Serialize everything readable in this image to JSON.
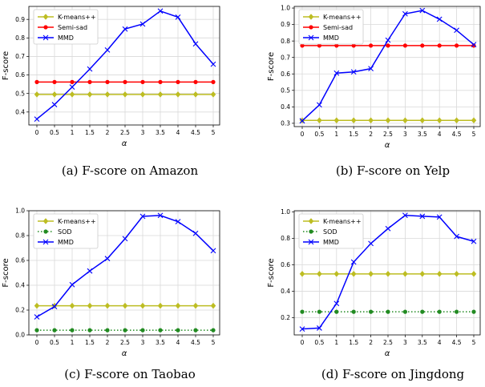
{
  "chart_data": [
    {
      "type": "line",
      "caption": "(a)  F-score on Amazon",
      "xlabel": "α",
      "ylabel": "F-score",
      "x": [
        "0",
        "0.5",
        "1",
        "1.5",
        "2",
        "2.5",
        "3",
        "3.5",
        "4",
        "4.5",
        "5"
      ],
      "ylim": [
        0.33,
        0.97
      ],
      "yticks": [
        0.4,
        0.5,
        0.6,
        0.7,
        0.8,
        0.9
      ],
      "ytick_labels": [
        "0.4",
        "0.5",
        "0.6",
        "0.7",
        "0.8",
        "0.9"
      ],
      "legend_placement": "top-left",
      "series": [
        {
          "name": "K-means++",
          "color": "#bdbd22",
          "style": "solid",
          "marker": "diamond",
          "values": [
            0.495,
            0.495,
            0.495,
            0.495,
            0.495,
            0.495,
            0.495,
            0.495,
            0.495,
            0.495,
            0.495
          ]
        },
        {
          "name": "Semi-sad",
          "color": "#ff0000",
          "style": "solid",
          "marker": "circle",
          "values": [
            0.562,
            0.562,
            0.562,
            0.562,
            0.562,
            0.562,
            0.562,
            0.562,
            0.562,
            0.562,
            0.562
          ]
        },
        {
          "name": "MMD",
          "color": "#0000ff",
          "style": "solid",
          "marker": "x",
          "values": [
            0.362,
            0.44,
            0.535,
            0.632,
            0.735,
            0.848,
            0.875,
            0.945,
            0.912,
            0.768,
            0.658
          ]
        }
      ]
    },
    {
      "type": "line",
      "caption": "(b)  F-score on Yelp",
      "xlabel": "α",
      "ylabel": "F-score",
      "x": [
        "0",
        "0.5",
        "1",
        "1.5",
        "2",
        "2.5",
        "3",
        "3.5",
        "4",
        "4.5",
        "5"
      ],
      "ylim": [
        0.28,
        1.01
      ],
      "yticks": [
        0.3,
        0.4,
        0.5,
        0.6,
        0.7,
        0.8,
        0.9,
        1.0
      ],
      "ytick_labels": [
        "0.3",
        "0.4",
        "0.5",
        "0.6",
        "0.7",
        "0.8",
        "0.9",
        "1.0"
      ],
      "legend_placement": "top-left",
      "series": [
        {
          "name": "K-means++",
          "color": "#bdbd22",
          "style": "solid",
          "marker": "diamond",
          "values": [
            0.318,
            0.318,
            0.318,
            0.318,
            0.318,
            0.318,
            0.318,
            0.318,
            0.318,
            0.318,
            0.318
          ]
        },
        {
          "name": "Semi-sad",
          "color": "#ff0000",
          "style": "solid",
          "marker": "circle",
          "values": [
            0.772,
            0.772,
            0.772,
            0.772,
            0.772,
            0.772,
            0.772,
            0.772,
            0.772,
            0.772,
            0.772
          ]
        },
        {
          "name": "MMD",
          "color": "#0000ff",
          "style": "solid",
          "marker": "x",
          "values": [
            0.315,
            0.412,
            0.605,
            0.612,
            0.632,
            0.805,
            0.965,
            0.985,
            0.932,
            0.865,
            0.778
          ]
        }
      ]
    },
    {
      "type": "line",
      "caption": "(c)  F-score on Taobao",
      "xlabel": "α",
      "ylabel": "F-score",
      "x": [
        "0",
        "0.5",
        "1",
        "1.5",
        "2",
        "2.5",
        "3",
        "3.5",
        "4",
        "4.5",
        "5"
      ],
      "ylim": [
        0.0,
        1.0
      ],
      "yticks": [
        0.0,
        0.2,
        0.4,
        0.6,
        0.8,
        1.0
      ],
      "ytick_labels": [
        "0.0",
        "0.2",
        "0.4",
        "0.6",
        "0.8",
        "1.0"
      ],
      "legend_placement": "top-left",
      "series": [
        {
          "name": "K-means++",
          "color": "#bdbd22",
          "style": "solid",
          "marker": "diamond",
          "values": [
            0.235,
            0.235,
            0.235,
            0.235,
            0.235,
            0.235,
            0.235,
            0.235,
            0.235,
            0.235,
            0.235
          ]
        },
        {
          "name": "SOD",
          "color": "#228b22",
          "style": "dotted",
          "marker": "circle",
          "values": [
            0.038,
            0.038,
            0.038,
            0.038,
            0.038,
            0.038,
            0.038,
            0.038,
            0.038,
            0.038,
            0.038
          ]
        },
        {
          "name": "MMD",
          "color": "#0000ff",
          "style": "solid",
          "marker": "x",
          "values": [
            0.145,
            0.228,
            0.405,
            0.515,
            0.615,
            0.775,
            0.955,
            0.962,
            0.912,
            0.818,
            0.678
          ]
        }
      ]
    },
    {
      "type": "line",
      "caption": "(d)  F-score on Jingdong",
      "xlabel": "α",
      "ylabel": "F-score",
      "x": [
        "0",
        "0.5",
        "1",
        "1.5",
        "2",
        "2.5",
        "3",
        "3.5",
        "4",
        "4.5",
        "5"
      ],
      "ylim": [
        0.07,
        1.01
      ],
      "yticks": [
        0.2,
        0.4,
        0.6,
        0.8,
        1.0
      ],
      "ytick_labels": [
        "0.2",
        "0.4",
        "0.6",
        "0.8",
        "1.0"
      ],
      "legend_placement": "top-left",
      "series": [
        {
          "name": "K-means++",
          "color": "#bdbd22",
          "style": "solid",
          "marker": "diamond",
          "values": [
            0.532,
            0.532,
            0.532,
            0.532,
            0.532,
            0.532,
            0.532,
            0.532,
            0.532,
            0.532,
            0.532
          ]
        },
        {
          "name": "SOD",
          "color": "#228b22",
          "style": "dotted",
          "marker": "circle",
          "values": [
            0.245,
            0.245,
            0.245,
            0.245,
            0.245,
            0.245,
            0.245,
            0.245,
            0.245,
            0.245,
            0.245
          ]
        },
        {
          "name": "MMD",
          "color": "#0000ff",
          "style": "solid",
          "marker": "x",
          "values": [
            0.115,
            0.122,
            0.308,
            0.622,
            0.762,
            0.875,
            0.975,
            0.968,
            0.962,
            0.815,
            0.778
          ]
        }
      ]
    }
  ]
}
